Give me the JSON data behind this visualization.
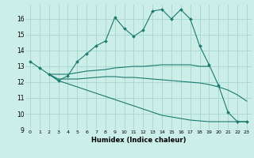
{
  "title": "",
  "xlabel": "Humidex (Indice chaleur)",
  "ylabel": "",
  "bg_color": "#cceee8",
  "grid_color": "#aad8d0",
  "line_color": "#1a7a6e",
  "xlim": [
    -0.5,
    23.5
  ],
  "ylim": [
    9,
    16.9
  ],
  "yticks": [
    9,
    10,
    11,
    12,
    13,
    14,
    15,
    16
  ],
  "xticks": [
    0,
    1,
    2,
    3,
    4,
    5,
    6,
    7,
    8,
    9,
    10,
    11,
    12,
    13,
    14,
    15,
    16,
    17,
    18,
    19,
    20,
    21,
    22,
    23
  ],
  "line1_x": [
    0,
    1,
    2,
    3,
    4,
    5,
    6,
    7,
    8,
    9,
    10,
    11,
    12,
    13,
    14,
    15,
    16,
    17,
    18,
    19,
    20,
    21,
    22,
    23
  ],
  "line1_y": [
    13.3,
    12.9,
    12.5,
    12.1,
    12.4,
    13.3,
    13.8,
    14.3,
    14.6,
    16.1,
    15.4,
    14.9,
    15.3,
    16.5,
    16.6,
    16.0,
    16.6,
    16.0,
    14.3,
    13.1,
    11.8,
    10.1,
    9.5,
    9.5
  ],
  "line2_x": [
    2,
    3,
    4,
    5,
    6,
    7,
    8,
    9,
    10,
    11,
    12,
    13,
    14,
    15,
    16,
    17,
    18,
    19
  ],
  "line2_y": [
    12.5,
    12.5,
    12.5,
    12.6,
    12.7,
    12.75,
    12.8,
    12.9,
    12.95,
    13.0,
    13.0,
    13.05,
    13.1,
    13.1,
    13.1,
    13.1,
    13.0,
    13.0
  ],
  "line3_x": [
    2,
    3,
    4,
    5,
    6,
    7,
    8,
    9,
    10,
    11,
    12,
    13,
    14,
    15,
    16,
    17,
    18,
    19,
    20,
    21,
    22,
    23
  ],
  "line3_y": [
    12.5,
    12.2,
    12.2,
    12.2,
    12.25,
    12.3,
    12.35,
    12.35,
    12.3,
    12.3,
    12.25,
    12.2,
    12.15,
    12.1,
    12.05,
    12.0,
    11.95,
    11.85,
    11.7,
    11.5,
    11.2,
    10.8
  ],
  "line4_x": [
    2,
    3,
    4,
    5,
    6,
    7,
    8,
    9,
    10,
    11,
    12,
    13,
    14,
    15,
    16,
    17,
    18,
    19,
    20,
    21,
    22,
    23
  ],
  "line4_y": [
    12.5,
    12.1,
    11.9,
    11.7,
    11.5,
    11.3,
    11.1,
    10.9,
    10.7,
    10.5,
    10.3,
    10.1,
    9.9,
    9.8,
    9.7,
    9.6,
    9.55,
    9.5,
    9.5,
    9.5,
    9.5,
    9.5
  ]
}
